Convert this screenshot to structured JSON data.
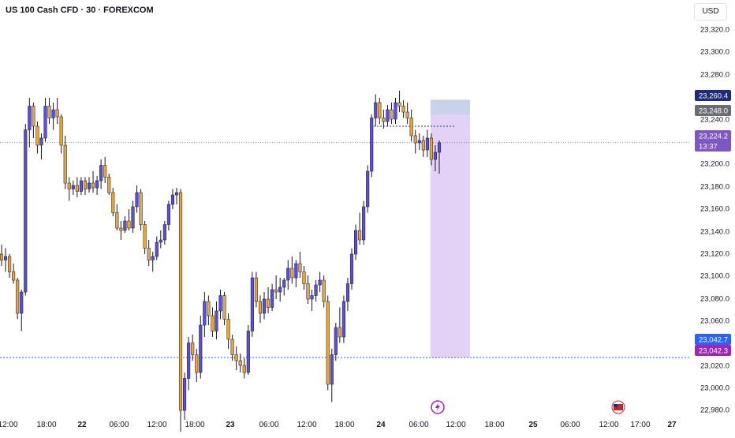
{
  "header": {
    "title": "US 100 Cash CFD · 30 · FOREXCOM",
    "currency": "USD"
  },
  "colors": {
    "up_candle": "#5b4fd8",
    "down_candle": "#e8a63c",
    "wick": "#131722",
    "price_line": "#787b86",
    "target_zone": "#c8d2ea",
    "entry_zone": "#e4d2f6",
    "target_label": "#1c2b7a",
    "entry_label": "#6b6b73",
    "current_label": "#7e57c2",
    "stop_label_a": "#2962ff",
    "stop_label_b": "#9c27b0",
    "dotted_blue": "#2962ff"
  },
  "price_axis": {
    "ticks": [
      "23,320.0",
      "23,300.0",
      "23,280.0",
      "23,260.4",
      "23,248.0",
      "23,240.0",
      "23,224.2",
      "13:37",
      "23,200.0",
      "23,180.0",
      "23,160.0",
      "23,140.0",
      "23,120.0",
      "23,100.0",
      "23,080.0",
      "23,060.0",
      "23,042.7",
      "23,042.3",
      "23,020.0",
      "23,000.0",
      "22,980.0"
    ]
  },
  "time_axis": {
    "labels": [
      "12:00",
      "18:00",
      "22",
      "06:00",
      "12:00",
      "18:00",
      "23",
      "06:00",
      "12:00",
      "18:00",
      "24",
      "06:00",
      "12:00",
      "18:00",
      "25",
      "06:00",
      "12:00",
      "17:00",
      "27"
    ]
  },
  "chart_data": {
    "type": "candlestick",
    "symbol": "US 100 Cash CFD",
    "timeframe": "30",
    "source": "FOREXCOM",
    "ylim": [
      22975,
      23332
    ],
    "price_labels": {
      "target": 23260.4,
      "entry": 23248.0,
      "current": 23224.2,
      "countdown": "13:37",
      "stop_a": 23042.7,
      "stop_b": 23042.3
    },
    "candles": [
      [
        23130,
        23138,
        23120,
        23125
      ],
      [
        23125,
        23135,
        23115,
        23128
      ],
      [
        23128,
        23130,
        23110,
        23115
      ],
      [
        23115,
        23122,
        23105,
        23108
      ],
      [
        23108,
        23110,
        23075,
        23080
      ],
      [
        23080,
        23100,
        23065,
        23098
      ],
      [
        23098,
        23240,
        23095,
        23235
      ],
      [
        23235,
        23262,
        23220,
        23255
      ],
      [
        23255,
        23258,
        23228,
        23238
      ],
      [
        23238,
        23242,
        23215,
        23222
      ],
      [
        23222,
        23232,
        23210,
        23228
      ],
      [
        23228,
        23262,
        23225,
        23255
      ],
      [
        23255,
        23262,
        23240,
        23245
      ],
      [
        23245,
        23258,
        23235,
        23252
      ],
      [
        23252,
        23262,
        23240,
        23246
      ],
      [
        23246,
        23248,
        23215,
        23222
      ],
      [
        23222,
        23230,
        23185,
        23190
      ],
      [
        23190,
        23195,
        23175,
        23185
      ],
      [
        23185,
        23192,
        23180,
        23188
      ],
      [
        23188,
        23195,
        23178,
        23183
      ],
      [
        23183,
        23195,
        23180,
        23192
      ],
      [
        23192,
        23195,
        23180,
        23185
      ],
      [
        23185,
        23195,
        23182,
        23190
      ],
      [
        23190,
        23200,
        23182,
        23186
      ],
      [
        23186,
        23196,
        23180,
        23192
      ],
      [
        23192,
        23210,
        23185,
        23205
      ],
      [
        23205,
        23212,
        23190,
        23195
      ],
      [
        23195,
        23198,
        23180,
        23182
      ],
      [
        23182,
        23186,
        23162,
        23165
      ],
      [
        23165,
        23172,
        23150,
        23152
      ],
      [
        23152,
        23158,
        23142,
        23150
      ],
      [
        23150,
        23162,
        23148,
        23158
      ],
      [
        23158,
        23168,
        23150,
        23152
      ],
      [
        23152,
        23175,
        23148,
        23170
      ],
      [
        23170,
        23188,
        23165,
        23182
      ],
      [
        23182,
        23185,
        23150,
        23155
      ],
      [
        23155,
        23158,
        23130,
        23135
      ],
      [
        23135,
        23142,
        23120,
        23125
      ],
      [
        23125,
        23132,
        23115,
        23128
      ],
      [
        23128,
        23145,
        23125,
        23140
      ],
      [
        23140,
        23150,
        23135,
        23142
      ],
      [
        23142,
        23158,
        23138,
        23155
      ],
      [
        23155,
        23175,
        23150,
        23172
      ],
      [
        23172,
        23185,
        23168,
        23180
      ],
      [
        23180,
        23186,
        23172,
        23182
      ],
      [
        23182,
        23185,
        22980,
        22998
      ],
      [
        22998,
        23030,
        22990,
        23025
      ],
      [
        23025,
        23060,
        23015,
        23055
      ],
      [
        23055,
        23062,
        23040,
        23045
      ],
      [
        23045,
        23050,
        23022,
        23030
      ],
      [
        23030,
        23078,
        23025,
        23070
      ],
      [
        23070,
        23098,
        23060,
        23090
      ],
      [
        23090,
        23095,
        23070,
        23078
      ],
      [
        23078,
        23085,
        23060,
        23065
      ],
      [
        23065,
        23090,
        23058,
        23082
      ],
      [
        23082,
        23100,
        23075,
        23095
      ],
      [
        23095,
        23098,
        23070,
        23075
      ],
      [
        23075,
        23080,
        23050,
        23058
      ],
      [
        23058,
        23062,
        23040,
        23045
      ],
      [
        23045,
        23052,
        23032,
        23040
      ],
      [
        23040,
        23046,
        23030,
        23036
      ],
      [
        23036,
        23042,
        23025,
        23030
      ],
      [
        23030,
        23070,
        23028,
        23065
      ],
      [
        23065,
        23115,
        23060,
        23110
      ],
      [
        23110,
        23115,
        23085,
        23090
      ],
      [
        23090,
        23095,
        23072,
        23080
      ],
      [
        23080,
        23098,
        23075,
        23092
      ],
      [
        23092,
        23102,
        23080,
        23085
      ],
      [
        23085,
        23105,
        23082,
        23100
      ],
      [
        23100,
        23112,
        23092,
        23098
      ],
      [
        23098,
        23110,
        23090,
        23102
      ],
      [
        23102,
        23110,
        23095,
        23108
      ],
      [
        23108,
        23125,
        23100,
        23118
      ],
      [
        23118,
        23128,
        23105,
        23110
      ],
      [
        23110,
        23125,
        23102,
        23122
      ],
      [
        23122,
        23132,
        23110,
        23115
      ],
      [
        23115,
        23120,
        23100,
        23105
      ],
      [
        23105,
        23112,
        23088,
        23092
      ],
      [
        23092,
        23100,
        23082,
        23095
      ],
      [
        23095,
        23108,
        23090,
        23104
      ],
      [
        23104,
        23115,
        23098,
        23108
      ],
      [
        23108,
        23112,
        23085,
        23090
      ],
      [
        23090,
        23095,
        23015,
        23020
      ],
      [
        23020,
        23050,
        23005,
        23045
      ],
      [
        23045,
        23072,
        23040,
        23068
      ],
      [
        23068,
        23085,
        23055,
        23060
      ],
      [
        23060,
        23095,
        23055,
        23090
      ],
      [
        23090,
        23110,
        23082,
        23105
      ],
      [
        23105,
        23135,
        23100,
        23130
      ],
      [
        23130,
        23155,
        23125,
        23150
      ],
      [
        23150,
        23165,
        23138,
        23142
      ],
      [
        23142,
        23175,
        23138,
        23170
      ],
      [
        23170,
        23205,
        23165,
        23200
      ],
      [
        23200,
        23248,
        23195,
        23245
      ],
      [
        23245,
        23265,
        23238,
        23258
      ],
      [
        23258,
        23262,
        23240,
        23245
      ],
      [
        23245,
        23252,
        23236,
        23242
      ],
      [
        23242,
        23256,
        23238,
        23252
      ],
      [
        23252,
        23258,
        23240,
        23244
      ],
      [
        23244,
        23262,
        23240,
        23258
      ],
      [
        23258,
        23268,
        23250,
        23255
      ],
      [
        23255,
        23260,
        23245,
        23250
      ],
      [
        23250,
        23258,
        23240,
        23245
      ],
      [
        23245,
        23252,
        23225,
        23230
      ],
      [
        23230,
        23235,
        23215,
        23224
      ],
      [
        23224,
        23232,
        23218,
        23226
      ],
      [
        23226,
        23230,
        23212,
        23218
      ],
      [
        23218,
        23235,
        23212,
        23228
      ],
      [
        23228,
        23232,
        23205,
        23210
      ],
      [
        23210,
        23222,
        23200,
        23216
      ],
      [
        23216,
        23226,
        23198,
        23224
      ]
    ]
  }
}
